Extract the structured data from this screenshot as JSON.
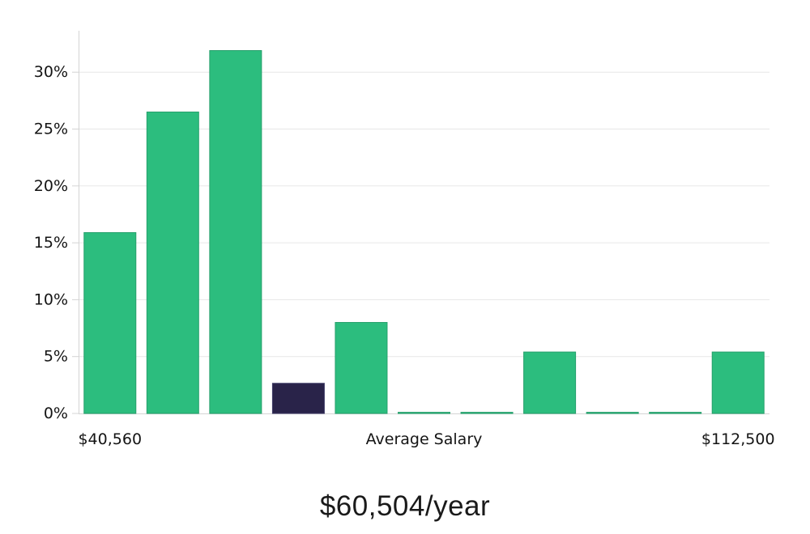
{
  "chart_data": {
    "type": "bar",
    "title": "$60,504/year",
    "values": [
      15.9,
      26.5,
      31.9,
      2.65,
      8.0,
      0.1,
      0.1,
      5.4,
      0.1,
      0.1,
      5.4
    ],
    "highlight_index": 3,
    "xticks": [
      {
        "position": 0,
        "label": "$40,560"
      },
      {
        "position": 5,
        "label": "Average Salary"
      },
      {
        "position": 10,
        "label": "$112,500"
      }
    ],
    "yticks": [
      0,
      5,
      10,
      15,
      20,
      25,
      30
    ],
    "ytick_suffix": "%",
    "ylim": [
      0,
      33.5
    ],
    "grid": true,
    "legend": false,
    "colors": {
      "bar": "#2cbd7e",
      "bar_edge": "#26a06c",
      "highlight": "#292349",
      "highlight_edge": "#3e3a66",
      "grid": "#e7e7e7",
      "axis": "#d4d4d4",
      "text": "#141414"
    }
  }
}
